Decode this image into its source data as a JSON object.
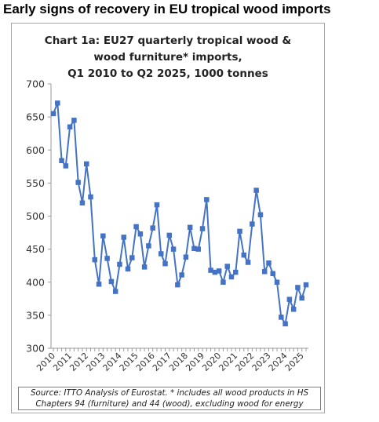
{
  "headline": "Early signs of recovery in EU tropical wood imports",
  "chart_data": {
    "type": "line",
    "title_lines": [
      "Chart 1a: EU27 quarterly tropical wood &",
      "wood furniture* imports,",
      "Q1 2010 to Q2 2025, 1000 tonnes"
    ],
    "ylim": [
      300,
      700
    ],
    "yticks": [
      300,
      350,
      400,
      450,
      500,
      550,
      600,
      650,
      700
    ],
    "xtick_labels": [
      "2010",
      "2011",
      "2012",
      "2013",
      "2014",
      "2015",
      "2016",
      "2017",
      "2018",
      "2019",
      "2020",
      "2021",
      "2022",
      "2023",
      "2024",
      "2025"
    ],
    "grid": false,
    "legend": "none",
    "color": "#4472c4",
    "categories": [
      "2010 Q1",
      "2010 Q2",
      "2010 Q3",
      "2010 Q4",
      "2011 Q1",
      "2011 Q2",
      "2011 Q3",
      "2011 Q4",
      "2012 Q1",
      "2012 Q2",
      "2012 Q3",
      "2012 Q4",
      "2013 Q1",
      "2013 Q2",
      "2013 Q3",
      "2013 Q4",
      "2014 Q1",
      "2014 Q2",
      "2014 Q3",
      "2014 Q4",
      "2015 Q1",
      "2015 Q2",
      "2015 Q3",
      "2015 Q4",
      "2016 Q1",
      "2016 Q2",
      "2016 Q3",
      "2016 Q4",
      "2017 Q1",
      "2017 Q2",
      "2017 Q3",
      "2017 Q4",
      "2018 Q1",
      "2018 Q2",
      "2018 Q3",
      "2018 Q4",
      "2019 Q1",
      "2019 Q2",
      "2019 Q3",
      "2019 Q4",
      "2020 Q1",
      "2020 Q2",
      "2020 Q3",
      "2020 Q4",
      "2021 Q1",
      "2021 Q2",
      "2021 Q3",
      "2021 Q4",
      "2022 Q1",
      "2022 Q2",
      "2022 Q3",
      "2022 Q4",
      "2023 Q1",
      "2023 Q2",
      "2023 Q3",
      "2023 Q4",
      "2024 Q1",
      "2024 Q2",
      "2024 Q3",
      "2024 Q4",
      "2025 Q1",
      "2025 Q2"
    ],
    "values": [
      655,
      671,
      584,
      576,
      635,
      645,
      551,
      520,
      579,
      529,
      434,
      397,
      470,
      436,
      401,
      386,
      427,
      468,
      420,
      437,
      484,
      473,
      423,
      455,
      482,
      517,
      443,
      428,
      471,
      450,
      396,
      411,
      438,
      483,
      451,
      450,
      481,
      525,
      418,
      415,
      417,
      400,
      424,
      408,
      415,
      477,
      441,
      430,
      488,
      539,
      502,
      416,
      429,
      413,
      400,
      347,
      337,
      374,
      359,
      392,
      376,
      396
    ]
  },
  "source_note": "Source: ITTO Analysis of Eurostat. * includes all wood products in HS Chapters 94 (furniture) and 44 (wood), excluding wood for energy"
}
